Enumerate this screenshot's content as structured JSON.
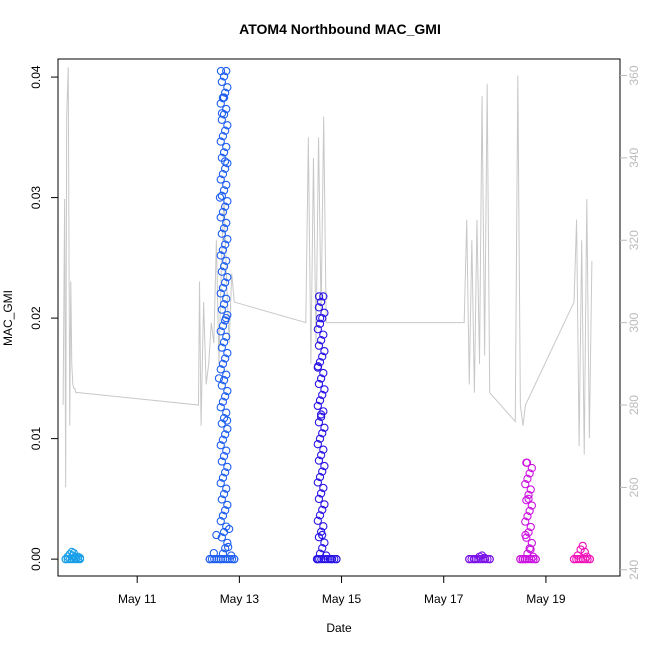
{
  "chart_data": {
    "type": "scatter",
    "title": "ATOM4 Northbound MAC_GMI",
    "xlabel": "Date",
    "ylabel": "MAC_GMI",
    "x_ticks": [
      "May 11",
      "May 13",
      "May 15",
      "May 17",
      "May 19"
    ],
    "x_tick_values": [
      11,
      13,
      15,
      17,
      19
    ],
    "xlim": [
      9.45,
      20.45
    ],
    "ylim": [
      -0.0014,
      0.0415
    ],
    "y_ticks": [
      "0.00",
      "0.01",
      "0.02",
      "0.03",
      "0.04"
    ],
    "y_tick_values": [
      0.0,
      0.01,
      0.02,
      0.03,
      0.04
    ],
    "y2lim": [
      238.5,
      364
    ],
    "y2_ticks": [
      "240",
      "260",
      "280",
      "300",
      "320",
      "340",
      "360"
    ],
    "y2_tick_values": [
      240,
      260,
      280,
      300,
      320,
      340,
      360
    ],
    "grid": false,
    "legend": "none",
    "colors": {
      "axis": "#000000",
      "secondary_axis": "#bbbbbb",
      "secondary_line": "#c8c8c8"
    },
    "series": [
      {
        "color": "#1a9fe8",
        "x": [
          9.6,
          9.64,
          9.68,
          9.72,
          9.74,
          9.76,
          9.78,
          9.8,
          9.84,
          9.88
        ],
        "y": [
          0.0,
          0.0002,
          0.0004,
          0.0006,
          0.0003,
          0.0005,
          0.0002,
          0.0001,
          0.0002,
          0.0001
        ]
      },
      {
        "color": "#1e5ff0",
        "x": [
          12.42,
          12.5,
          12.55,
          12.6,
          12.62,
          12.64,
          12.66,
          12.68,
          12.7,
          12.72,
          12.74,
          12.76,
          12.78,
          12.8,
          12.84,
          12.9
        ],
        "y": [
          0.0,
          0.0005,
          0.002,
          0.015,
          0.03,
          0.0405,
          0.037,
          0.0383,
          0.0383,
          0.033,
          0.02,
          0.0115,
          0.001,
          0.0025,
          0.0003,
          0.0
        ],
        "max": 0.0405
      },
      {
        "color": "#2a14e6",
        "x": [
          14.52,
          14.54,
          14.56,
          14.58,
          14.6,
          14.62,
          14.7,
          14.8,
          14.9
        ],
        "y": [
          0.0,
          0.016,
          0.0218,
          0.02,
          0.012,
          0.002,
          0.0003,
          0.0,
          0.0
        ],
        "max": 0.0218
      },
      {
        "color": "#7a12e8",
        "x": [
          17.5,
          17.6,
          17.7,
          17.75,
          17.8,
          17.9
        ],
        "y": [
          0.0,
          0.0,
          0.0002,
          0.0003,
          0.0001,
          0.0
        ]
      },
      {
        "color": "#cc12e0",
        "x": [
          18.5,
          18.55,
          18.6,
          18.63,
          18.66,
          18.7,
          18.75,
          18.8
        ],
        "y": [
          0.0,
          0.0,
          0.002,
          0.008,
          0.005,
          0.0008,
          0.0002,
          0.0
        ],
        "max": 0.008
      },
      {
        "color": "#f012b8",
        "x": [
          19.55,
          19.62,
          19.68,
          19.72,
          19.76,
          19.8,
          19.86
        ],
        "y": [
          0.0,
          0.0003,
          0.0008,
          0.0011,
          0.0006,
          0.0002,
          0.0
        ]
      }
    ],
    "secondary_line": {
      "x": [
        9.55,
        9.58,
        9.6,
        9.62,
        9.65,
        9.68,
        9.7,
        9.72,
        9.74,
        9.76,
        9.78,
        9.8,
        9.85,
        12.2,
        12.22,
        12.25,
        12.3,
        12.35,
        12.4,
        12.45,
        12.5,
        12.55,
        12.6,
        12.65,
        12.7,
        12.75,
        12.8,
        12.85,
        12.9,
        14.3,
        14.35,
        14.4,
        14.45,
        14.5,
        14.55,
        14.6,
        14.65,
        14.7,
        14.75,
        14.8,
        14.85,
        14.9,
        17.4,
        17.45,
        17.5,
        17.55,
        17.6,
        17.65,
        17.7,
        17.75,
        17.8,
        17.85,
        17.9,
        18.4,
        18.45,
        18.5,
        18.55,
        18.6,
        19.55,
        19.6,
        19.65,
        19.7,
        19.75,
        19.8,
        19.85,
        19.9
      ],
      "y": [
        280,
        330,
        260,
        350,
        362,
        275,
        310,
        290,
        285,
        284,
        284,
        283,
        283,
        280,
        310,
        275,
        305,
        285,
        290,
        300,
        295,
        320,
        290,
        315,
        330,
        310,
        295,
        312,
        305,
        300,
        345,
        290,
        340,
        295,
        345,
        302,
        350,
        300,
        300,
        300,
        300,
        300,
        300,
        325,
        285,
        320,
        283,
        325,
        290,
        355,
        292,
        358,
        283,
        276,
        360,
        280,
        275,
        280,
        305,
        325,
        270,
        320,
        268,
        330,
        272,
        315
      ]
    }
  }
}
